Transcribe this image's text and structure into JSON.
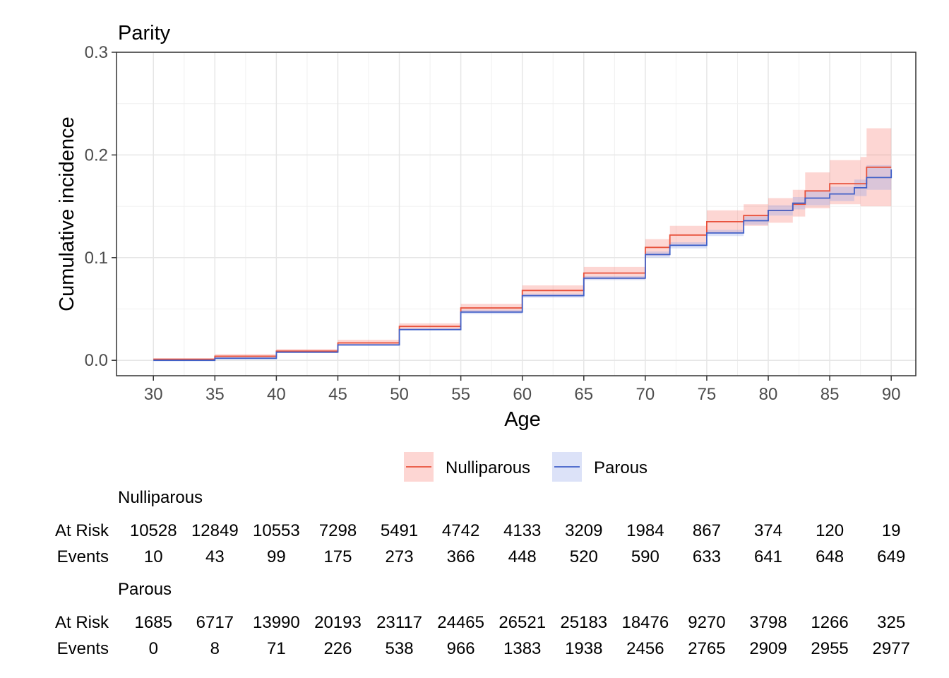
{
  "chart_data": {
    "type": "line",
    "title": "Parity",
    "xlabel": "Age",
    "ylabel": "Cumulative incidence",
    "xlim": [
      27,
      92
    ],
    "ylim": [
      -0.015,
      0.3
    ],
    "x_ticks": [
      30,
      35,
      40,
      45,
      50,
      55,
      60,
      65,
      70,
      75,
      80,
      85,
      90
    ],
    "x_tick_labels": [
      "30",
      "35",
      "40",
      "45",
      "50",
      "55",
      "60",
      "65",
      "70",
      "75",
      "80",
      "85",
      "90"
    ],
    "y_ticks": [
      0.0,
      0.1,
      0.2,
      0.3
    ],
    "y_tick_labels": [
      "0.0",
      "0.1",
      "0.2",
      "0.3"
    ],
    "grid": true,
    "legend_position": "bottom",
    "series": [
      {
        "name": "Nulliparous",
        "color": "#E8513B",
        "band_color": "#F8766D",
        "x": [
          30,
          35,
          40,
          45,
          50,
          55,
          60,
          65,
          70,
          72,
          75,
          78,
          80,
          82,
          83,
          85,
          87,
          87.5,
          88,
          90
        ],
        "y": [
          0.001,
          0.004,
          0.009,
          0.017,
          0.033,
          0.051,
          0.068,
          0.085,
          0.11,
          0.122,
          0.135,
          0.141,
          0.146,
          0.152,
          0.165,
          0.172,
          0.172,
          0.172,
          0.188,
          0.188
        ],
        "lower": [
          0.0,
          0.002,
          0.007,
          0.015,
          0.03,
          0.047,
          0.063,
          0.079,
          0.102,
          0.113,
          0.124,
          0.131,
          0.134,
          0.14,
          0.148,
          0.152,
          0.152,
          0.15,
          0.15,
          0.15
        ],
        "upper": [
          0.002,
          0.006,
          0.011,
          0.02,
          0.036,
          0.055,
          0.073,
          0.091,
          0.118,
          0.131,
          0.146,
          0.152,
          0.158,
          0.166,
          0.183,
          0.195,
          0.195,
          0.198,
          0.226,
          0.226
        ]
      },
      {
        "name": "Parous",
        "color": "#4060C8",
        "band_color": "#8C9EE8",
        "x": [
          30,
          35,
          40,
          45,
          50,
          55,
          60,
          65,
          70,
          72,
          75,
          78,
          80,
          82,
          83,
          85,
          87,
          88,
          90
        ],
        "y": [
          0.0,
          0.002,
          0.008,
          0.015,
          0.03,
          0.047,
          0.063,
          0.08,
          0.103,
          0.112,
          0.124,
          0.136,
          0.146,
          0.153,
          0.158,
          0.162,
          0.168,
          0.178,
          0.186
        ],
        "lower": [
          0.0,
          0.001,
          0.007,
          0.014,
          0.029,
          0.045,
          0.061,
          0.078,
          0.1,
          0.109,
          0.121,
          0.132,
          0.141,
          0.147,
          0.151,
          0.155,
          0.16,
          0.166,
          0.172
        ],
        "upper": [
          0.001,
          0.003,
          0.009,
          0.016,
          0.031,
          0.049,
          0.065,
          0.082,
          0.106,
          0.115,
          0.127,
          0.14,
          0.151,
          0.159,
          0.165,
          0.169,
          0.176,
          0.19,
          0.2
        ]
      }
    ],
    "risk_table": {
      "columns": [
        30,
        35,
        40,
        45,
        50,
        55,
        60,
        65,
        70,
        75,
        80,
        85,
        90
      ],
      "groups": [
        {
          "name": "Nulliparous",
          "rows": [
            {
              "label": "At Risk",
              "values": [
                "10528",
                "12849",
                "10553",
                "7298",
                "5491",
                "4742",
                "4133",
                "3209",
                "1984",
                "867",
                "374",
                "120",
                "19"
              ]
            },
            {
              "label": "Events",
              "values": [
                "10",
                "43",
                "99",
                "175",
                "273",
                "366",
                "448",
                "520",
                "590",
                "633",
                "641",
                "648",
                "649"
              ]
            }
          ]
        },
        {
          "name": "Parous",
          "rows": [
            {
              "label": "At Risk",
              "values": [
                "1685",
                "6717",
                "13990",
                "20193",
                "23117",
                "24465",
                "26521",
                "25183",
                "18476",
                "9270",
                "3798",
                "1266",
                "325"
              ]
            },
            {
              "label": "Events",
              "values": [
                "0",
                "8",
                "71",
                "226",
                "538",
                "966",
                "1383",
                "1938",
                "2456",
                "2765",
                "2909",
                "2955",
                "2977"
              ]
            }
          ]
        }
      ]
    }
  }
}
